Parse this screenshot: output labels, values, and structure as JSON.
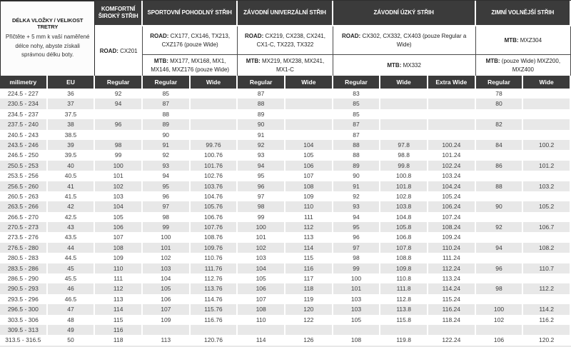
{
  "header": {
    "title": "DÉLKA VLOŽKY / VELIKOST TRETRY",
    "description": "Přičtěte + 5 mm k vaší naměřené délce nohy, abyste získali správnou délku boty.",
    "groups": [
      {
        "name": "KOMFORTNÍ ŠIROKÝ STŘIH",
        "span": 1,
        "products": [
          {
            "label": "ROAD:",
            "models": "CX201",
            "full_height": true
          }
        ]
      },
      {
        "name": "SPORTOVNÍ POHODLNÝ STŘIH",
        "span": 2,
        "products": [
          {
            "label": "ROAD:",
            "models": "CX177, CX146, TX213, CXZ176 (pouze Wide)"
          },
          {
            "label": "MTB:",
            "models": "MX177, MX168, MX1, MX146, MXZ176 (pouze Wide)"
          }
        ]
      },
      {
        "name": "ZÁVODNÍ UNIVERZÁLNÍ STŘIH",
        "span": 2,
        "products": [
          {
            "label": "ROAD:",
            "models": "CX219, CX238, CX241, CX1-C, TX223, TX322"
          },
          {
            "label": "MTB:",
            "models": "MX219, MX238, MX241, MX1-C"
          }
        ]
      },
      {
        "name": "ZÁVODNÍ ÚZKÝ STŘIH",
        "span": 3,
        "products": [
          {
            "label": "ROAD:",
            "models": "CX302, CX332, CX403 (pouze Regular a Wide)"
          },
          {
            "label": "MTB:",
            "models": "MX332"
          }
        ]
      },
      {
        "name": "ZIMNÍ VOLNĚJŠÍ STŘIH",
        "span": 2,
        "products": [
          {
            "label": "MTB:",
            "models": "MXZ304"
          },
          {
            "label": "MTB:",
            "models": "(pouze Wide) MXZ200, MXZ400"
          }
        ]
      }
    ]
  },
  "columns": [
    "milimetry",
    "EU",
    "Regular",
    "Regular",
    "Wide",
    "Regular",
    "Wide",
    "Regular",
    "Wide",
    "Extra Wide",
    "Regular",
    "Wide"
  ],
  "rows": [
    [
      "224.5 - 227",
      "36",
      "92",
      "85",
      "",
      "87",
      "",
      "83",
      "",
      "",
      "78",
      ""
    ],
    [
      "230.5 - 234",
      "37",
      "94",
      "87",
      "",
      "88",
      "",
      "85",
      "",
      "",
      "80",
      ""
    ],
    [
      "234.5 - 237",
      "37.5",
      "",
      "88",
      "",
      "89",
      "",
      "85",
      "",
      "",
      "",
      ""
    ],
    [
      "237.5 - 240",
      "38",
      "96",
      "89",
      "",
      "90",
      "",
      "87",
      "",
      "",
      "82",
      ""
    ],
    [
      "240.5 - 243",
      "38.5",
      "",
      "90",
      "",
      "91",
      "",
      "87",
      "",
      "",
      "",
      ""
    ],
    [
      "243.5 - 246",
      "39",
      "98",
      "91",
      "99.76",
      "92",
      "104",
      "88",
      "97.8",
      "100.24",
      "84",
      "100.2"
    ],
    [
      "246.5 - 250",
      "39.5",
      "99",
      "92",
      "100.76",
      "93",
      "105",
      "88",
      "98.8",
      "101.24",
      "",
      ""
    ],
    [
      "250.5 - 253",
      "40",
      "100",
      "93",
      "101.76",
      "94",
      "106",
      "89",
      "99.8",
      "102.24",
      "86",
      "101.2"
    ],
    [
      "253.5 - 256",
      "40.5",
      "101",
      "94",
      "102.76",
      "95",
      "107",
      "90",
      "100.8",
      "103.24",
      "",
      ""
    ],
    [
      "256.5 - 260",
      "41",
      "102",
      "95",
      "103.76",
      "96",
      "108",
      "91",
      "101.8",
      "104.24",
      "88",
      "103.2"
    ],
    [
      "260.5 - 263",
      "41.5",
      "103",
      "96",
      "104.76",
      "97",
      "109",
      "92",
      "102.8",
      "105.24",
      "",
      ""
    ],
    [
      "263.5 - 266",
      "42",
      "104",
      "97",
      "105.76",
      "98",
      "110",
      "93",
      "103.8",
      "106.24",
      "90",
      "105.2"
    ],
    [
      "266.5 - 270",
      "42.5",
      "105",
      "98",
      "106.76",
      "99",
      "111",
      "94",
      "104.8",
      "107.24",
      "",
      ""
    ],
    [
      "270.5 - 273",
      "43",
      "106",
      "99",
      "107.76",
      "100",
      "112",
      "95",
      "105.8",
      "108.24",
      "92",
      "106.7"
    ],
    [
      "273.5 - 276",
      "43.5",
      "107",
      "100",
      "108.76",
      "101",
      "113",
      "96",
      "106.8",
      "109.24",
      "",
      ""
    ],
    [
      "276.5 - 280",
      "44",
      "108",
      "101",
      "109.76",
      "102",
      "114",
      "97",
      "107.8",
      "110.24",
      "94",
      "108.2"
    ],
    [
      "280.5 - 283",
      "44.5",
      "109",
      "102",
      "110.76",
      "103",
      "115",
      "98",
      "108.8",
      "111.24",
      "",
      ""
    ],
    [
      "283.5 - 286",
      "45",
      "110",
      "103",
      "111.76",
      "104",
      "116",
      "99",
      "109.8",
      "112.24",
      "96",
      "110.7"
    ],
    [
      "286.5 - 290",
      "45.5",
      "111",
      "104",
      "112.76",
      "105",
      "117",
      "100",
      "110.8",
      "113.24",
      "",
      ""
    ],
    [
      "290.5 - 293",
      "46",
      "112",
      "105",
      "113.76",
      "106",
      "118",
      "101",
      "111.8",
      "114.24",
      "98",
      "112.2"
    ],
    [
      "293.5 - 296",
      "46.5",
      "113",
      "106",
      "114.76",
      "107",
      "119",
      "103",
      "112.8",
      "115.24",
      "",
      ""
    ],
    [
      "296.5 - 300",
      "47",
      "114",
      "107",
      "115.76",
      "108",
      "120",
      "103",
      "113.8",
      "116.24",
      "100",
      "114.2"
    ],
    [
      "303.5 - 306",
      "48",
      "115",
      "109",
      "116.76",
      "110",
      "122",
      "105",
      "115.8",
      "118.24",
      "102",
      "116.2"
    ],
    [
      "309.5 - 313",
      "49",
      "116",
      "",
      "",
      "",
      "",
      "",
      "",
      "",
      "",
      ""
    ],
    [
      "313.5 - 316.5",
      "50",
      "118",
      "113",
      "120.76",
      "114",
      "126",
      "108",
      "119.8",
      "122.24",
      "106",
      "120.2"
    ]
  ],
  "colors": {
    "header_bg": "#3b3b3b",
    "alt_row_bg": "#e8e8e8",
    "header_text": "#ffffff",
    "body_text": "#3c3c3c"
  }
}
